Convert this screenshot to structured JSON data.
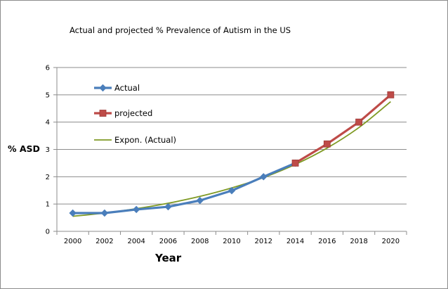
{
  "chart_data": {
    "type": "line",
    "title": "Actual and projected % Prevalence of Autism in the US",
    "xlabel": "Year",
    "ylabel": "% ASD",
    "x": [
      "2000",
      "2002",
      "2004",
      "2006",
      "2008",
      "2010",
      "2012",
      "2014",
      "2016",
      "2018",
      "2020"
    ],
    "ylim": [
      0,
      6
    ],
    "yticks": [
      "0",
      "1",
      "2",
      "3",
      "4",
      "5",
      "6"
    ],
    "grid": "horizontal",
    "legend_position": "upper-left inside plot",
    "series": [
      {
        "name": "Actual",
        "color": "#4a7ebb",
        "marker": "diamond",
        "values": [
          0.67,
          0.67,
          0.8,
          0.9,
          1.13,
          1.49,
          2.0,
          2.5,
          null,
          null,
          null
        ]
      },
      {
        "name": "projected",
        "color": "#be4b48",
        "marker": "square",
        "values": [
          null,
          null,
          null,
          null,
          null,
          null,
          null,
          2.5,
          3.2,
          4.0,
          5.0
        ]
      },
      {
        "name": "Expon. (Actual)",
        "color": "#7f9a24",
        "marker": "none",
        "values": [
          0.55,
          0.67,
          0.83,
          1.03,
          1.28,
          1.59,
          1.97,
          2.45,
          3.05,
          3.8,
          4.75
        ]
      }
    ]
  }
}
